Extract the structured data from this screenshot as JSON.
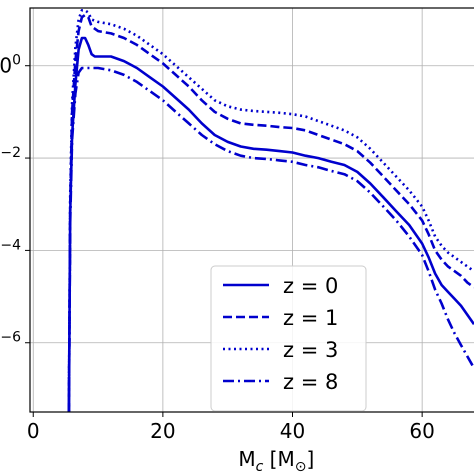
{
  "chart_data": {
    "type": "line",
    "title": "",
    "xlabel": "M",
    "xlabel_sub": "c",
    "xlabel_unit_open": " [M",
    "xlabel_unit_sun": "⊙",
    "xlabel_unit_close": "]",
    "ylabel": "",
    "x_ticks": [
      {
        "value": 0,
        "label": "0"
      },
      {
        "value": 20,
        "label": "20"
      },
      {
        "value": 40,
        "label": "40"
      },
      {
        "value": 60,
        "label": "60"
      }
    ],
    "y_ticks": [
      {
        "value": 0,
        "label": "0",
        "prefix": "0"
      },
      {
        "value": -2,
        "label": "−2"
      },
      {
        "value": -4,
        "label": "−4"
      },
      {
        "value": -6,
        "label": "−6"
      }
    ],
    "xlim": [
      -0.5,
      68
    ],
    "ylim": [
      -7.5,
      1.25
    ],
    "grid": true,
    "legend": "lower-center",
    "line_color": "#0000cd",
    "series": [
      {
        "name": "z = 0",
        "style": "solid",
        "x": [
          5.5,
          5.7,
          6,
          6.5,
          7,
          7.5,
          8,
          8.5,
          9,
          9.5,
          10,
          12,
          14,
          16,
          18,
          20,
          22,
          24,
          26,
          28,
          30,
          32,
          34,
          36,
          38,
          40,
          42,
          44,
          46,
          48,
          50,
          52,
          54,
          56,
          58,
          60,
          61,
          62,
          63,
          64,
          65,
          66,
          67,
          68
        ],
        "y": [
          -7.5,
          -3.2,
          -1.5,
          -0.4,
          0.35,
          0.6,
          0.6,
          0.45,
          0.25,
          0.2,
          0.2,
          0.2,
          0.1,
          -0.05,
          -0.25,
          -0.45,
          -0.7,
          -0.95,
          -1.25,
          -1.5,
          -1.65,
          -1.75,
          -1.8,
          -1.82,
          -1.85,
          -1.88,
          -1.95,
          -2.0,
          -2.08,
          -2.15,
          -2.3,
          -2.55,
          -2.85,
          -3.15,
          -3.45,
          -3.85,
          -4.15,
          -4.5,
          -4.75,
          -4.9,
          -5.05,
          -5.2,
          -5.4,
          -5.6
        ]
      },
      {
        "name": "z = 1",
        "style": "dashed",
        "x": [
          5.5,
          5.7,
          6,
          6.5,
          7,
          7.5,
          8,
          8.5,
          9,
          10,
          12,
          14,
          16,
          18,
          20,
          22,
          24,
          26,
          28,
          30,
          32,
          34,
          36,
          38,
          40,
          42,
          44,
          46,
          48,
          50,
          52,
          54,
          56,
          58,
          60,
          61,
          62,
          63,
          64,
          65,
          66,
          67,
          68
        ],
        "y": [
          -7.5,
          -3.0,
          -1.0,
          0.1,
          0.75,
          1.05,
          1.1,
          1.05,
          0.85,
          0.75,
          0.7,
          0.6,
          0.45,
          0.25,
          0.05,
          -0.2,
          -0.45,
          -0.75,
          -1.0,
          -1.15,
          -1.25,
          -1.28,
          -1.3,
          -1.33,
          -1.35,
          -1.4,
          -1.5,
          -1.6,
          -1.7,
          -1.85,
          -2.1,
          -2.4,
          -2.7,
          -3.0,
          -3.35,
          -3.65,
          -4.0,
          -4.2,
          -4.35,
          -4.45,
          -4.55,
          -4.7,
          -4.8
        ]
      },
      {
        "name": "z = 3",
        "style": "dotted",
        "x": [
          5.5,
          5.7,
          6,
          6.5,
          7,
          7.5,
          8,
          8.5,
          9,
          10,
          12,
          14,
          16,
          18,
          20,
          22,
          24,
          26,
          28,
          30,
          32,
          34,
          36,
          38,
          40,
          42,
          44,
          46,
          48,
          50,
          52,
          54,
          56,
          58,
          60,
          61,
          62,
          63,
          64,
          65,
          66,
          67,
          68
        ],
        "y": [
          -7.5,
          -2.8,
          -0.8,
          0.4,
          1.0,
          1.2,
          1.2,
          1.15,
          1.0,
          0.95,
          0.9,
          0.8,
          0.65,
          0.45,
          0.25,
          0.0,
          -0.25,
          -0.5,
          -0.75,
          -0.88,
          -0.95,
          -0.98,
          -1.0,
          -1.02,
          -1.05,
          -1.1,
          -1.2,
          -1.3,
          -1.4,
          -1.55,
          -1.8,
          -2.1,
          -2.4,
          -2.7,
          -3.05,
          -3.35,
          -3.7,
          -3.9,
          -4.05,
          -4.15,
          -4.25,
          -4.35,
          -4.45
        ]
      },
      {
        "name": "z = 8",
        "style": "dashdot",
        "x": [
          5.5,
          5.7,
          6,
          6.5,
          7,
          7.5,
          8,
          8.5,
          9,
          10,
          12,
          14,
          16,
          18,
          20,
          22,
          24,
          26,
          28,
          30,
          32,
          34,
          36,
          38,
          40,
          42,
          44,
          46,
          48,
          50,
          52,
          54,
          56,
          58,
          60,
          61,
          62,
          63,
          64,
          65,
          66,
          67,
          68
        ],
        "y": [
          -7.5,
          -3.4,
          -1.6,
          -0.6,
          -0.15,
          -0.05,
          -0.05,
          -0.05,
          -0.05,
          -0.05,
          -0.1,
          -0.2,
          -0.35,
          -0.55,
          -0.75,
          -1.0,
          -1.25,
          -1.5,
          -1.7,
          -1.85,
          -1.95,
          -2.0,
          -2.02,
          -2.05,
          -2.08,
          -2.15,
          -2.2,
          -2.28,
          -2.35,
          -2.5,
          -2.75,
          -3.05,
          -3.35,
          -3.7,
          -4.1,
          -4.45,
          -4.85,
          -5.15,
          -5.5,
          -5.8,
          -6.05,
          -6.3,
          -6.55
        ]
      }
    ]
  }
}
